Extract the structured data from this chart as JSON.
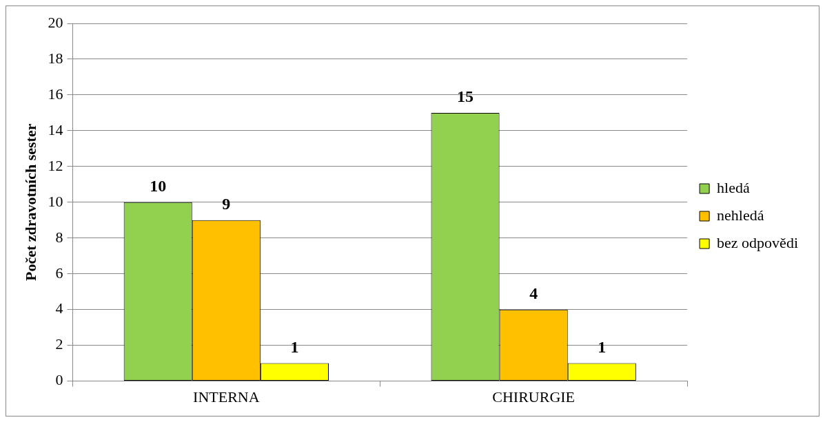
{
  "chart_data": {
    "type": "bar",
    "ylabel": "Počet zdravotních sester",
    "categories": [
      "INTERNA",
      "CHIRURGIE"
    ],
    "series": [
      {
        "name": "hledá",
        "color": "#92d050",
        "values": [
          10,
          15
        ]
      },
      {
        "name": "nehledá",
        "color": "#ffc000",
        "values": [
          9,
          4
        ]
      },
      {
        "name": "bez odpovědi",
        "color": "#ffff00",
        "values": [
          1,
          1
        ]
      }
    ],
    "ylim": [
      0,
      20
    ],
    "yticks": [
      0,
      2,
      4,
      6,
      8,
      10,
      12,
      14,
      16,
      18,
      20
    ],
    "grid": "y",
    "legend": "right",
    "data_labels": true
  }
}
